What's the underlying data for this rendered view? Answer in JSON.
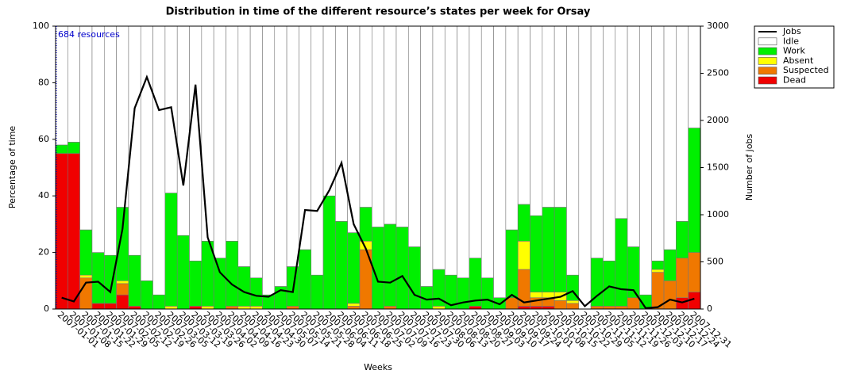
{
  "chart_data": {
    "type": "bar",
    "title": "Distribution in time of the different resource’s states per week for Orsay",
    "x_label": "Weeks",
    "y_label": "Percentage of time",
    "y2_label": "Number of jobs",
    "annotation": "684 resources",
    "categories": [
      "2007-01-01",
      "2007-01-08",
      "2007-01-15",
      "2007-01-22",
      "2007-01-29",
      "2007-02-05",
      "2007-02-12",
      "2007-02-19",
      "2007-02-26",
      "2007-03-05",
      "2007-03-12",
      "2007-03-19",
      "2007-03-26",
      "2007-04-02",
      "2007-04-09",
      "2007-04-16",
      "2007-04-23",
      "2007-04-30",
      "2007-05-07",
      "2007-05-14",
      "2007-05-21",
      "2007-05-28",
      "2007-06-04",
      "2007-06-11",
      "2007-06-18",
      "2007-06-25",
      "2007-07-02",
      "2007-07-09",
      "2007-07-16",
      "2007-07-23",
      "2007-07-30",
      "2007-08-06",
      "2007-08-13",
      "2007-08-20",
      "2007-08-27",
      "2007-09-03",
      "2007-09-10",
      "2007-09-17",
      "2007-09-24",
      "2007-10-01",
      "2007-10-08",
      "2007-10-15",
      "2007-10-22",
      "2007-10-29",
      "2007-11-05",
      "2007-11-12",
      "2007-11-19",
      "2007-11-26",
      "2007-12-03",
      "2007-12-10",
      "2007-12-17",
      "2007-12-24",
      "2007-12-31"
    ],
    "ylim": [
      0,
      100
    ],
    "yticks": [
      0,
      20,
      40,
      60,
      80,
      100
    ],
    "y2lim": [
      0,
      3000
    ],
    "y2ticks": [
      0,
      500,
      1000,
      1500,
      2000,
      2500,
      3000
    ],
    "legend": "outside-top-right",
    "series": [
      {
        "name": "Jobs",
        "type": "line",
        "axis": "y2",
        "color": "#000000",
        "values": [
          120,
          80,
          280,
          290,
          180,
          850,
          2130,
          2460,
          2110,
          2140,
          1310,
          2380,
          760,
          390,
          260,
          180,
          140,
          130,
          200,
          180,
          1050,
          1040,
          1260,
          1550,
          900,
          640,
          290,
          280,
          350,
          150,
          100,
          110,
          40,
          70,
          90,
          100,
          50,
          150,
          70,
          90,
          110,
          130,
          190,
          30,
          140,
          240,
          210,
          200,
          10,
          20,
          100,
          70,
          110
        ]
      },
      {
        "name": "Idle",
        "color": "#ffffff",
        "values": [
          42,
          41,
          72,
          80,
          81,
          64,
          81,
          90,
          95,
          59,
          74,
          83,
          76,
          82,
          76,
          85,
          89,
          95,
          92,
          85,
          79,
          88,
          60,
          69,
          73,
          64,
          71,
          70,
          71,
          78,
          92,
          86,
          88,
          89,
          82,
          89,
          96,
          72,
          63,
          67,
          64,
          64,
          88,
          100,
          82,
          83,
          68,
          78,
          95,
          83,
          79,
          69,
          36
        ]
      },
      {
        "name": "Work",
        "color": "#00f000",
        "values": [
          3,
          4,
          16,
          18,
          17,
          26,
          18,
          10,
          5,
          40,
          26,
          16,
          23,
          18,
          23,
          14,
          10,
          5,
          8,
          14,
          21,
          12,
          40,
          31,
          25,
          12,
          29,
          29,
          29,
          22,
          8,
          13,
          12,
          11,
          17,
          11,
          4,
          24,
          13,
          27,
          30,
          30,
          9,
          0,
          17,
          16,
          31,
          18,
          5,
          3,
          11,
          13,
          44
        ]
      },
      {
        "name": "Absent",
        "color": "#ffff00",
        "values": [
          0,
          0,
          1,
          0,
          0,
          1,
          0,
          0,
          0,
          1,
          0,
          0,
          1,
          0,
          0,
          1,
          1,
          0,
          0,
          0,
          0,
          0,
          0,
          0,
          1,
          3,
          0,
          0,
          0,
          0,
          0,
          1,
          0,
          0,
          0,
          0,
          0,
          0,
          10,
          2,
          2,
          3,
          1,
          0,
          0,
          0,
          0,
          0,
          0,
          1,
          0,
          0,
          0
        ]
      },
      {
        "name": "Suspected",
        "color": "#f07800",
        "values": [
          0,
          0,
          11,
          0,
          0,
          4,
          0,
          0,
          0,
          0,
          0,
          0,
          0,
          0,
          1,
          0,
          0,
          0,
          0,
          1,
          0,
          0,
          0,
          0,
          1,
          21,
          0,
          1,
          0,
          0,
          0,
          0,
          0,
          0,
          0,
          0,
          0,
          4,
          13,
          3,
          3,
          3,
          2,
          0,
          1,
          1,
          1,
          4,
          0,
          13,
          10,
          14,
          14
        ]
      },
      {
        "name": "Dead",
        "color": "#f00000",
        "values": [
          55,
          55,
          0,
          2,
          2,
          5,
          1,
          0,
          0,
          0,
          0,
          1,
          0,
          0,
          0,
          0,
          0,
          0,
          0,
          0,
          0,
          0,
          0,
          0,
          0,
          0,
          0,
          0,
          0,
          0,
          0,
          0,
          0,
          0,
          1,
          0,
          0,
          0,
          1,
          1,
          1,
          0,
          0,
          0,
          0,
          0,
          0,
          0,
          0,
          0,
          0,
          4,
          6
        ]
      }
    ]
  }
}
